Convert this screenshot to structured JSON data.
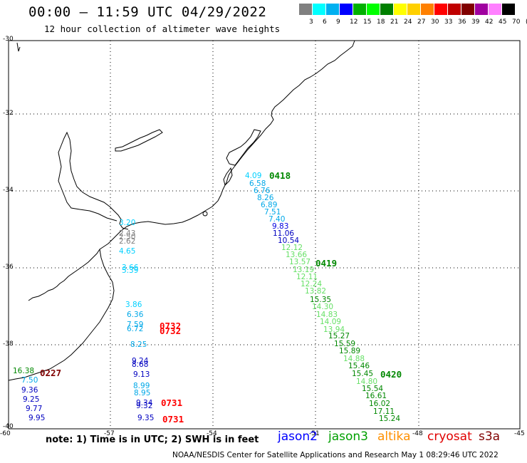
{
  "title": "00:00 – 11:59 UTC 04/29/2022",
  "subtitle": "12 hour collection of altimeter wave heights",
  "scale": {
    "colors": [
      "#808080",
      "#00ffff",
      "#00b0f0",
      "#0000ff",
      "#00b000",
      "#00ff00",
      "#008000",
      "#ffff00",
      "#ffd000",
      "#ff8000",
      "#ff0000",
      "#c00000",
      "#800000",
      "#a000a0",
      "#ff80ff",
      "#000000"
    ],
    "labels": [
      "3",
      "6",
      "9",
      "12",
      "15",
      "18",
      "21",
      "24",
      "27",
      "30",
      "33",
      "36",
      "39",
      "42",
      "45",
      "70",
      "(ft)"
    ]
  },
  "lon_labels": [
    "-60",
    "-57",
    "-54",
    "-51",
    "-48",
    "-45"
  ],
  "lat_labels": [
    "-30",
    "-32",
    "-34",
    "-36",
    "-38",
    "-40"
  ],
  "chart_data": {
    "type": "scatter",
    "points": [
      {
        "v": "4.09",
        "c": "#00d0ff"
      },
      {
        "v": "6.58",
        "c": "#00a8e8"
      },
      {
        "v": "6.76",
        "c": "#00a8e8"
      },
      {
        "v": "8.26",
        "c": "#00a8e8"
      },
      {
        "v": "6.89",
        "c": "#00a8e8"
      },
      {
        "v": "7.51",
        "c": "#00a8e8"
      },
      {
        "v": "7.40",
        "c": "#00a8e8"
      },
      {
        "v": "9.83",
        "c": "#0000e0"
      },
      {
        "v": "11.06",
        "c": "#0000c0"
      },
      {
        "v": "10.54",
        "c": "#0000c0"
      },
      {
        "v": "12.12",
        "c": "#66e066"
      },
      {
        "v": "13.66",
        "c": "#66e066"
      },
      {
        "v": "13.57",
        "c": "#66e066"
      },
      {
        "v": "13.19",
        "c": "#66e066"
      },
      {
        "v": "12.11",
        "c": "#66e066"
      },
      {
        "v": "12.24",
        "c": "#66e066"
      },
      {
        "v": "13.82",
        "c": "#66e066"
      },
      {
        "v": "15.35",
        "c": "#008800"
      },
      {
        "v": "14.30",
        "c": "#66e066"
      },
      {
        "v": "14.83",
        "c": "#66e066"
      },
      {
        "v": "14.09",
        "c": "#66e066"
      },
      {
        "v": "13.94",
        "c": "#66e066"
      },
      {
        "v": "15.27",
        "c": "#008800"
      },
      {
        "v": "15.59",
        "c": "#008800"
      },
      {
        "v": "15.89",
        "c": "#008800"
      },
      {
        "v": "14.88",
        "c": "#66e066"
      },
      {
        "v": "15.46",
        "c": "#008800"
      },
      {
        "v": "15.45",
        "c": "#008800"
      },
      {
        "v": "14.80",
        "c": "#66e066"
      },
      {
        "v": "15.54",
        "c": "#008800"
      },
      {
        "v": "16.61",
        "c": "#008800"
      },
      {
        "v": "16.02",
        "c": "#008800"
      },
      {
        "v": "17.11",
        "c": "#008800"
      },
      {
        "v": "15.24",
        "c": "#008800"
      },
      {
        "v": "3.20",
        "c": "#00d0ff"
      },
      {
        "v": "2.43",
        "c": "#808080"
      },
      {
        "v": "2.50",
        "c": "#808080"
      },
      {
        "v": "2.62",
        "c": "#808080"
      },
      {
        "v": "4.65",
        "c": "#00d0ff"
      },
      {
        "v": "3.66",
        "c": "#00d0ff"
      },
      {
        "v": "5.39",
        "c": "#00d0ff"
      },
      {
        "v": "3.86",
        "c": "#00d0ff"
      },
      {
        "v": "6.36",
        "c": "#00a8e8"
      },
      {
        "v": "7.59",
        "c": "#00a8e8"
      },
      {
        "v": "6.72",
        "c": "#00a8e8"
      },
      {
        "v": "8.25",
        "c": "#00a8e8"
      },
      {
        "v": "9.24",
        "c": "#0000c0"
      },
      {
        "v": "8.68",
        "c": "#0000c0"
      },
      {
        "v": "9.13",
        "c": "#0000c0"
      },
      {
        "v": "8.99",
        "c": "#00a8e8"
      },
      {
        "v": "8.95",
        "c": "#00a8e8"
      },
      {
        "v": "9.34",
        "c": "#0000c0"
      },
      {
        "v": "9.32",
        "c": "#0000c0"
      },
      {
        "v": "9.35",
        "c": "#0000c0"
      },
      {
        "v": "16.38",
        "c": "#008800"
      },
      {
        "v": "7.50",
        "c": "#00a8e8"
      },
      {
        "v": "9.36",
        "c": "#0000c0"
      },
      {
        "v": "9.25",
        "c": "#0000c0"
      },
      {
        "v": "9.77",
        "c": "#0000c0"
      },
      {
        "v": "9.95",
        "c": "#0000c0"
      }
    ]
  },
  "time_labels": [
    {
      "t": "0418",
      "c": "#008800"
    },
    {
      "t": "0419",
      "c": "#008800"
    },
    {
      "t": "0420",
      "c": "#008800"
    },
    {
      "t": "0732",
      "c": "#ff0000"
    },
    {
      "t": "0732",
      "c": "#ff0000"
    },
    {
      "t": "0731",
      "c": "#ff0000"
    },
    {
      "t": "0731",
      "c": "#ff0000"
    },
    {
      "t": "0227",
      "c": "#800000"
    }
  ],
  "note": "note: 1) Time is in UTC; 2) SWH is in feet",
  "satellites": [
    {
      "name": "jason2",
      "color": "#0000ff"
    },
    {
      "name": "jason3",
      "color": "#00a000"
    },
    {
      "name": "altika",
      "color": "#ff9000"
    },
    {
      "name": "cryosat",
      "color": "#e00000"
    },
    {
      "name": "s3a",
      "color": "#800000"
    }
  ],
  "footer": "NOAA/NESDIS Center for Satellite Applications and Research   May  1 08:29:46 UTC 2022"
}
